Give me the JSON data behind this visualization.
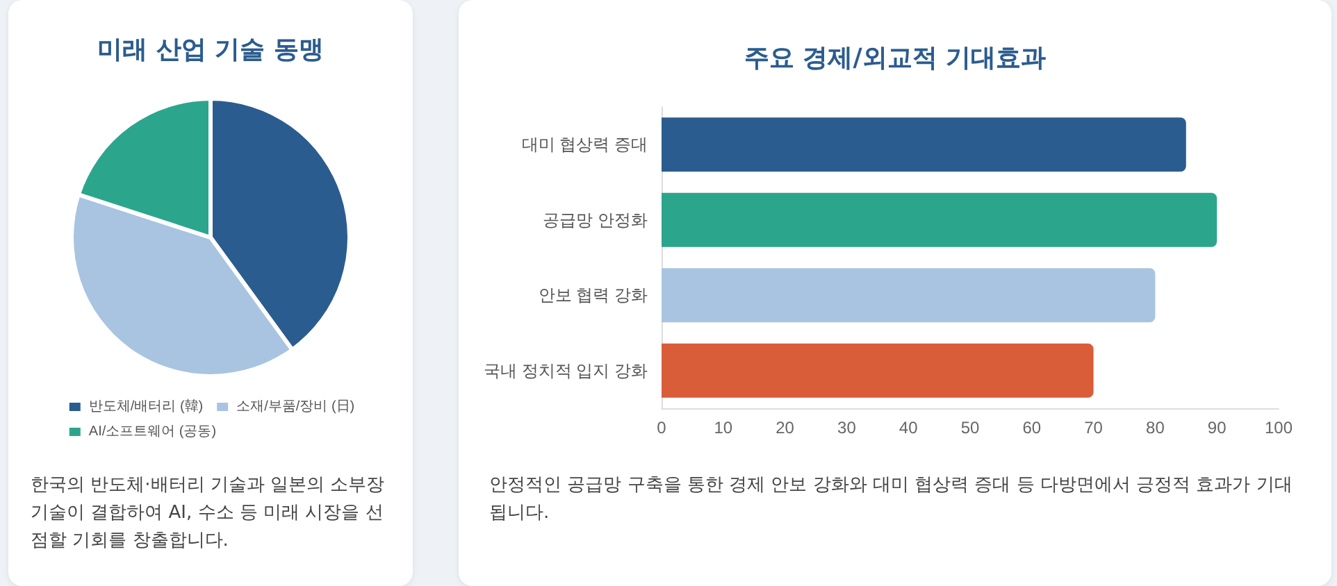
{
  "chart_data": [
    {
      "type": "pie",
      "title": "미래 산업 기술 동맹",
      "categories": [
        "반도체/배터리 (韓)",
        "소재/부품/장비 (日)",
        "AI/소프트웨어 (공동)"
      ],
      "values": [
        40,
        40,
        20
      ],
      "colors": [
        "#2b5c8f",
        "#a8c4e0",
        "#2ca58d"
      ],
      "legend": "bottom",
      "annotations": [
        "한국의 반도체·배터리 기술과 일본의 소부장 기술이 결합하여 AI, 수소 등 미래 시장을 선점할 기회를 창출합니다."
      ]
    },
    {
      "type": "bar",
      "orientation": "horizontal",
      "title": "주요 경제/외교적 기대효과",
      "categories": [
        "대미 협상력 증대",
        "공급망 안정화",
        "안보 협력 강화",
        "국내 정치적 입지 강화"
      ],
      "values": [
        85,
        90,
        80,
        70
      ],
      "colors": [
        "#2b5c8f",
        "#2ca58d",
        "#a8c4e0",
        "#d95d39"
      ],
      "xlim": [
        0,
        100
      ],
      "xticks": [
        0,
        10,
        20,
        30,
        40,
        50,
        60,
        70,
        80,
        90,
        100
      ],
      "grid": false,
      "legend": false,
      "annotations": [
        "안정적인 공급망 구축을 통한 경제 안보 강화와 대미 협상력 증대 등 다방면에서 긍정적 효과가 기대됩니다."
      ]
    }
  ]
}
